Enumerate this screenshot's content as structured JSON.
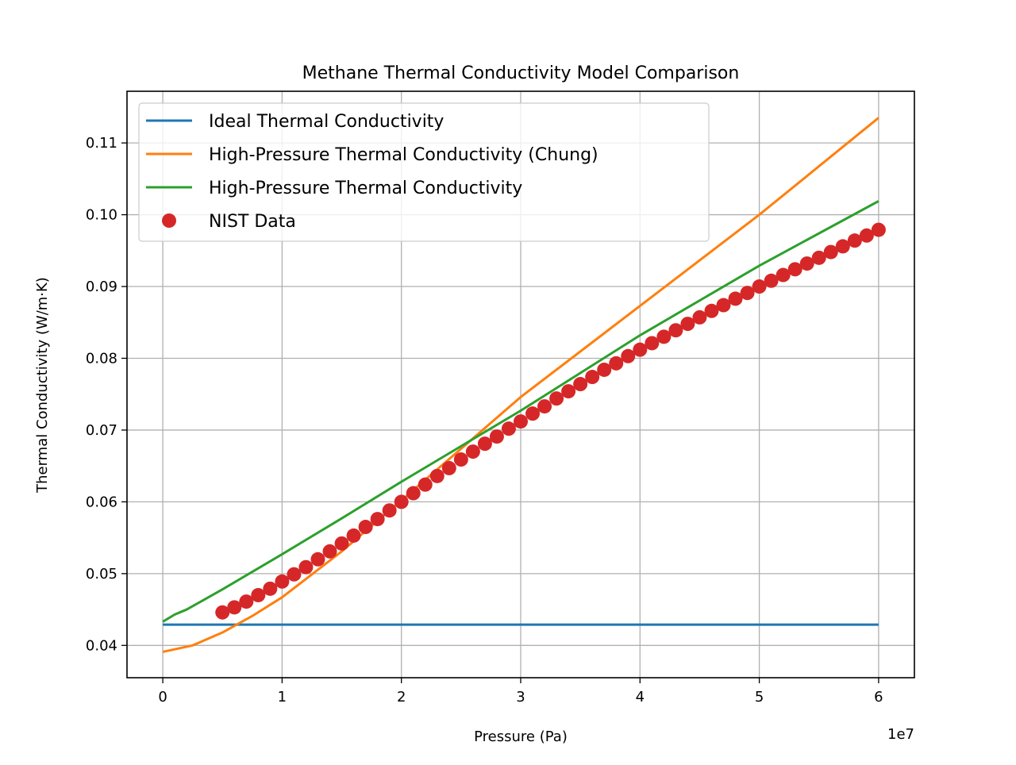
{
  "chart_data": {
    "type": "line",
    "title": "Methane Thermal Conductivity Model Comparison",
    "xlabel": "Pressure (Pa)",
    "ylabel": "Thermal Conductivity (W/m·K)",
    "x_offset_label": "1e7",
    "xlim": [
      -3000000,
      63000000
    ],
    "ylim": [
      0.0355,
      0.1172
    ],
    "xticks": [
      0,
      10000000,
      20000000,
      30000000,
      40000000,
      50000000,
      60000000
    ],
    "xtick_labels": [
      "0",
      "1",
      "2",
      "3",
      "4",
      "5",
      "6"
    ],
    "yticks": [
      0.04,
      0.05,
      0.06,
      0.07,
      0.08,
      0.09,
      0.1,
      0.11
    ],
    "ytick_labels": [
      "0.04",
      "0.05",
      "0.06",
      "0.07",
      "0.08",
      "0.09",
      "0.10",
      "0.11"
    ],
    "grid": true,
    "legend_position": "top-left",
    "series": [
      {
        "name": "Ideal Thermal Conductivity",
        "style": "line",
        "color": "#1f77b4",
        "x": [
          0,
          60000000
        ],
        "y": [
          0.0429,
          0.0429
        ]
      },
      {
        "name": "High-Pressure Thermal Conductivity (Chung)",
        "style": "line",
        "color": "#ff7f0e",
        "x": [
          0,
          2500000,
          5000000,
          7500000,
          10000000,
          15000000,
          20000000,
          25000000,
          30000000,
          40000000,
          50000000,
          60000000
        ],
        "y": [
          0.0391,
          0.04,
          0.0418,
          0.0441,
          0.0467,
          0.0531,
          0.0602,
          0.0674,
          0.0746,
          0.0873,
          0.1,
          0.1135
        ]
      },
      {
        "name": "High-Pressure Thermal Conductivity",
        "style": "line",
        "color": "#2ca02c",
        "x": [
          0,
          1000000,
          2000000,
          5000000,
          10000000,
          15000000,
          20000000,
          30000000,
          40000000,
          50000000,
          60000000
        ],
        "y": [
          0.0433,
          0.0443,
          0.045,
          0.0478,
          0.0527,
          0.0577,
          0.0628,
          0.0727,
          0.0832,
          0.0929,
          0.1019
        ]
      },
      {
        "name": "NIST Data",
        "style": "marker",
        "color": "#d62728",
        "x": [
          5000000,
          6000000,
          7000000,
          8000000,
          9000000,
          10000000,
          11000000,
          12000000,
          13000000,
          14000000,
          15000000,
          16000000,
          17000000,
          18000000,
          19000000,
          20000000,
          21000000,
          22000000,
          23000000,
          24000000,
          25000000,
          26000000,
          27000000,
          28000000,
          29000000,
          30000000,
          31000000,
          32000000,
          33000000,
          34000000,
          35000000,
          36000000,
          37000000,
          38000000,
          39000000,
          40000000,
          41000000,
          42000000,
          43000000,
          44000000,
          45000000,
          46000000,
          47000000,
          48000000,
          49000000,
          50000000,
          51000000,
          52000000,
          53000000,
          54000000,
          55000000,
          56000000,
          57000000,
          58000000,
          59000000,
          60000000
        ],
        "y": [
          0.0446,
          0.0453,
          0.0461,
          0.047,
          0.0479,
          0.0489,
          0.0499,
          0.0509,
          0.052,
          0.0531,
          0.0542,
          0.0553,
          0.0565,
          0.0576,
          0.0588,
          0.06,
          0.0612,
          0.0624,
          0.0636,
          0.0647,
          0.0659,
          0.067,
          0.0681,
          0.0691,
          0.0702,
          0.0712,
          0.0723,
          0.0733,
          0.0744,
          0.0754,
          0.0764,
          0.0774,
          0.0784,
          0.0793,
          0.0803,
          0.0812,
          0.0821,
          0.083,
          0.0839,
          0.0848,
          0.0857,
          0.0866,
          0.0874,
          0.0883,
          0.0891,
          0.09,
          0.0908,
          0.0916,
          0.0924,
          0.0932,
          0.094,
          0.0948,
          0.0956,
          0.0964,
          0.0971,
          0.0979
        ]
      }
    ]
  }
}
